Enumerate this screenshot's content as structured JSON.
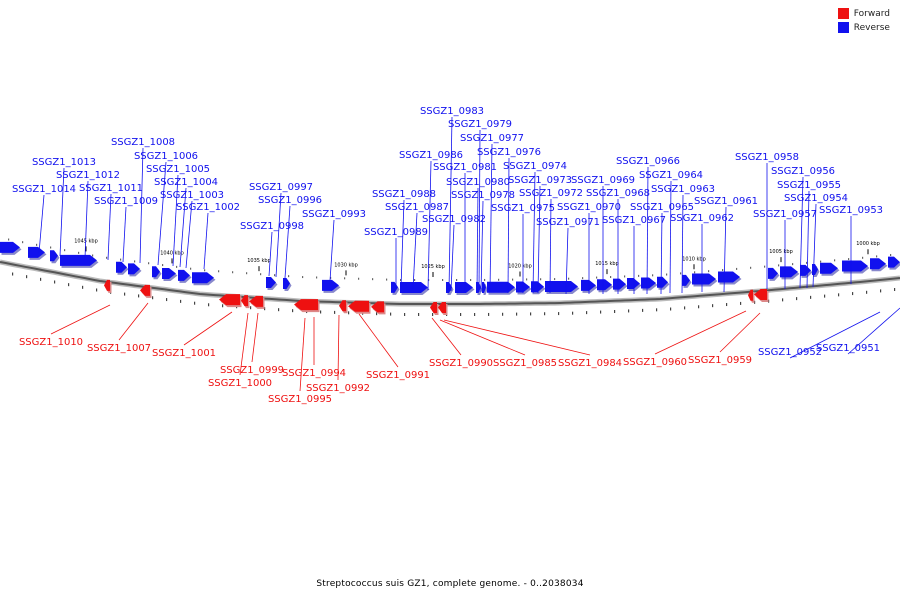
{
  "legend": [
    {
      "label": "Forward",
      "color": "#ee1111"
    },
    {
      "label": "Reverse",
      "color": "#1111ee"
    }
  ],
  "caption": "Streptococcus suis GZ1, complete genome. - 0..2038034",
  "ticks": [
    "1045 kbp",
    "1040 kbp",
    "1035 kbp",
    "1030 kbp",
    "1025 kbp",
    "1020 kbp",
    "1015 kbp",
    "1010 kbp",
    "1005 kbp",
    "1000 kbp"
  ],
  "reverse_genes": [
    "SSGZ1_1014",
    "SSGZ1_1013",
    "SSGZ1_1012",
    "SSGZ1_1011",
    "SSGZ1_1009",
    "SSGZ1_1008",
    "SSGZ1_1006",
    "SSGZ1_1005",
    "SSGZ1_1004",
    "SSGZ1_1003",
    "SSGZ1_1002",
    "SSGZ1_0998",
    "SSGZ1_0997",
    "SSGZ1_0996",
    "SSGZ1_0993",
    "SSGZ1_0989",
    "SSGZ1_0988",
    "SSGZ1_0987",
    "SSGZ1_0986",
    "SSGZ1_0983",
    "SSGZ1_0982",
    "SSGZ1_0981",
    "SSGZ1_0980",
    "SSGZ1_0979",
    "SSGZ1_0978",
    "SSGZ1_0977",
    "SSGZ1_0976",
    "SSGZ1_0975",
    "SSGZ1_0974",
    "SSGZ1_0973",
    "SSGZ1_0972",
    "SSGZ1_0971",
    "SSGZ1_0970",
    "SSGZ1_0969",
    "SSGZ1_0968",
    "SSGZ1_0967",
    "SSGZ1_0966",
    "SSGZ1_0965",
    "SSGZ1_0964",
    "SSGZ1_0963",
    "SSGZ1_0962",
    "SSGZ1_0961",
    "SSGZ1_0958",
    "SSGZ1_0957",
    "SSGZ1_0956",
    "SSGZ1_0955",
    "SSGZ1_0954",
    "SSGZ1_0953",
    "SSGZ1_0952",
    "SSGZ1_0951"
  ],
  "forward_genes": [
    "SSGZ1_1010",
    "SSGZ1_1007",
    "SSGZ1_1001",
    "SSGZ1_0999",
    "SSGZ1_1000",
    "SSGZ1_0995",
    "SSGZ1_0994",
    "SSGZ1_0992",
    "SSGZ1_0991",
    "SSGZ1_0990",
    "SSGZ1_0985",
    "SSGZ1_0984",
    "SSGZ1_0960",
    "SSGZ1_0959"
  ]
}
